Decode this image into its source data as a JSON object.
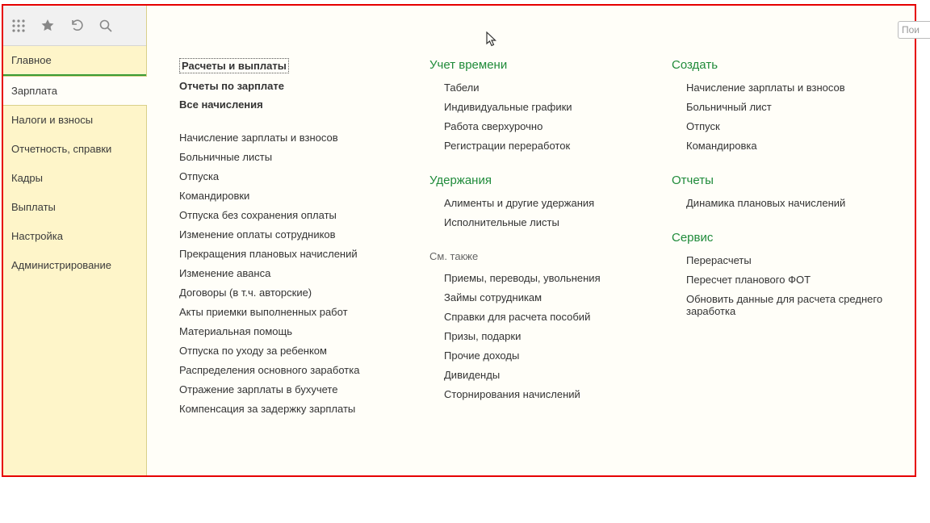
{
  "sidebar": {
    "nav": [
      {
        "label": "Главное",
        "active": false
      },
      {
        "label": "Зарплата",
        "active": true
      },
      {
        "label": "Налоги и взносы",
        "active": false
      },
      {
        "label": "Отчетность, справки",
        "active": false
      },
      {
        "label": "Кадры",
        "active": false
      },
      {
        "label": "Выплаты",
        "active": false
      },
      {
        "label": "Настройка",
        "active": false
      },
      {
        "label": "Администрирование",
        "active": false
      }
    ]
  },
  "search_placeholder": "Пои",
  "col1": {
    "top_links": [
      "Расчеты и выплаты",
      "Отчеты по зарплате",
      "Все начисления"
    ],
    "items": [
      "Начисление зарплаты и взносов",
      "Больничные листы",
      "Отпуска",
      "Командировки",
      "Отпуска без сохранения оплаты",
      "Изменение оплаты сотрудников",
      "Прекращения плановых начислений",
      "Изменение аванса",
      "Договоры (в т.ч. авторские)",
      "Акты приемки выполненных работ",
      "Материальная помощь",
      "Отпуска по уходу за ребенком",
      "Распределения основного заработка",
      "Отражение зарплаты в бухучете",
      "Компенсация за задержку зарплаты"
    ]
  },
  "col2": {
    "groups": [
      {
        "title": "Учет времени",
        "items": [
          "Табели",
          "Индивидуальные графики",
          "Работа сверхурочно",
          "Регистрации переработок"
        ]
      },
      {
        "title": "Удержания",
        "items": [
          "Алименты и другие удержания",
          "Исполнительные листы"
        ]
      },
      {
        "title": "См. также",
        "muted": true,
        "items": [
          "Приемы, переводы, увольнения",
          "Займы сотрудникам",
          "Справки для расчета пособий",
          "Призы, подарки",
          "Прочие доходы",
          "Дивиденды",
          "Сторнирования начислений"
        ]
      }
    ]
  },
  "col3": {
    "groups": [
      {
        "title": "Создать",
        "items": [
          "Начисление зарплаты и взносов",
          "Больничный лист",
          "Отпуск",
          "Командировка"
        ]
      },
      {
        "title": "Отчеты",
        "items": [
          "Динамика плановых начислений"
        ]
      },
      {
        "title": "Сервис",
        "items": [
          "Перерасчеты",
          "Пересчет планового ФОТ",
          "Обновить данные для расчета среднего заработка"
        ]
      }
    ]
  }
}
